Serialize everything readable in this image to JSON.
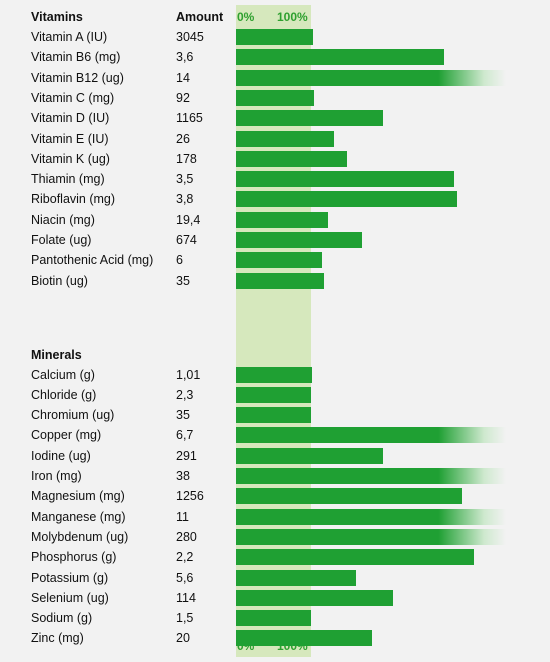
{
  "chart_data": {
    "type": "bar",
    "orientation": "horizontal",
    "axis_ticks": [
      "0%",
      "100%"
    ],
    "columns": {
      "name": "",
      "amount": "Amount"
    },
    "value_unit": "percent of daily value",
    "overflow_fade": true,
    "colors": {
      "bar": "#1fa033",
      "band": "#d6e8bd",
      "tick_text": "#2fa02f",
      "background": "#f2f2f2"
    },
    "groups": [
      {
        "name": "Vitamins",
        "rows": [
          {
            "name": "Vitamin A (IU)",
            "amount": "3045",
            "pct": 102
          },
          {
            "name": "Vitamin B6 (mg)",
            "amount": "3,6",
            "pct": 277
          },
          {
            "name": "Vitamin B12 (ug)",
            "amount": "14",
            "pct": 360
          },
          {
            "name": "Vitamin C (mg)",
            "amount": "92",
            "pct": 104
          },
          {
            "name": "Vitamin D (IU)",
            "amount": "1165",
            "pct": 196
          },
          {
            "name": "Vitamin E (IU)",
            "amount": "26",
            "pct": 130
          },
          {
            "name": "Vitamin K (ug)",
            "amount": "178",
            "pct": 148
          },
          {
            "name": "Thiamin (mg)",
            "amount": "3,5",
            "pct": 291
          },
          {
            "name": "Riboflavin (mg)",
            "amount": "3,8",
            "pct": 295
          },
          {
            "name": "Niacin (mg)",
            "amount": "19,4",
            "pct": 122
          },
          {
            "name": "Folate (ug)",
            "amount": "674",
            "pct": 168
          },
          {
            "name": "Pantothenic Acid (mg)",
            "amount": "6",
            "pct": 114
          },
          {
            "name": "Biotin (ug)",
            "amount": "35",
            "pct": 117
          }
        ]
      },
      {
        "name": "Minerals",
        "rows": [
          {
            "name": "Calcium (g)",
            "amount": "1,01",
            "pct": 101
          },
          {
            "name": "Chloride (g)",
            "amount": "2,3",
            "pct": 100
          },
          {
            "name": "Chromium (ug)",
            "amount": "35",
            "pct": 100
          },
          {
            "name": "Copper (mg)",
            "amount": "6,7",
            "pct": 360
          },
          {
            "name": "Iodine (ug)",
            "amount": "291",
            "pct": 196
          },
          {
            "name": "Iron (mg)",
            "amount": "38",
            "pct": 360
          },
          {
            "name": "Magnesium (mg)",
            "amount": "1256",
            "pct": 301
          },
          {
            "name": "Manganese (mg)",
            "amount": "11",
            "pct": 360
          },
          {
            "name": "Molybdenum (ug)",
            "amount": "280",
            "pct": 360
          },
          {
            "name": "Phosphorus (g)",
            "amount": "2,2",
            "pct": 317
          },
          {
            "name": "Potassium (g)",
            "amount": "5,6",
            "pct": 160
          },
          {
            "name": "Selenium (ug)",
            "amount": "114",
            "pct": 209
          },
          {
            "name": "Sodium (g)",
            "amount": "1,5",
            "pct": 100
          },
          {
            "name": "Zinc (mg)",
            "amount": "20",
            "pct": 181
          }
        ]
      }
    ]
  }
}
